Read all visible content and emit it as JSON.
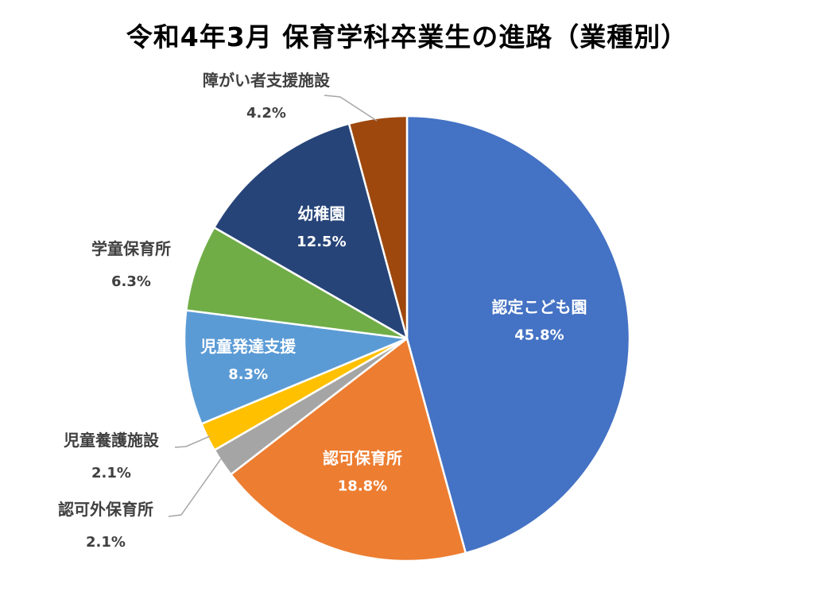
{
  "chart_data": {
    "type": "pie",
    "title": "令和4年3月 保育学科卒業生の進路（業種別）",
    "start_angle_deg": 0,
    "direction": "clockwise",
    "slices": [
      {
        "label": "認定こども園",
        "value": 45.8,
        "display": "45.8%",
        "color": "#4472C4",
        "label_position": "inside"
      },
      {
        "label": "認可保育所",
        "value": 18.8,
        "display": "18.8%",
        "color": "#ED7D31",
        "label_position": "inside"
      },
      {
        "label": "認可外保育所",
        "value": 2.1,
        "display": "2.1%",
        "color": "#A5A5A5",
        "label_position": "outside"
      },
      {
        "label": "児童養護施設",
        "value": 2.1,
        "display": "2.1%",
        "color": "#FFC000",
        "label_position": "outside"
      },
      {
        "label": "児童発達支援",
        "value": 8.3,
        "display": "8.3%",
        "color": "#5B9BD5",
        "label_position": "inside"
      },
      {
        "label": "学童保育所",
        "value": 6.3,
        "display": "6.3%",
        "color": "#70AD47",
        "label_position": "outside"
      },
      {
        "label": "幼稚園",
        "value": 12.5,
        "display": "12.5%",
        "color": "#264478",
        "label_position": "inside"
      },
      {
        "label": "障がい者支援施設",
        "value": 4.2,
        "display": "4.2%",
        "color": "#9E480E",
        "label_position": "outside"
      }
    ]
  }
}
